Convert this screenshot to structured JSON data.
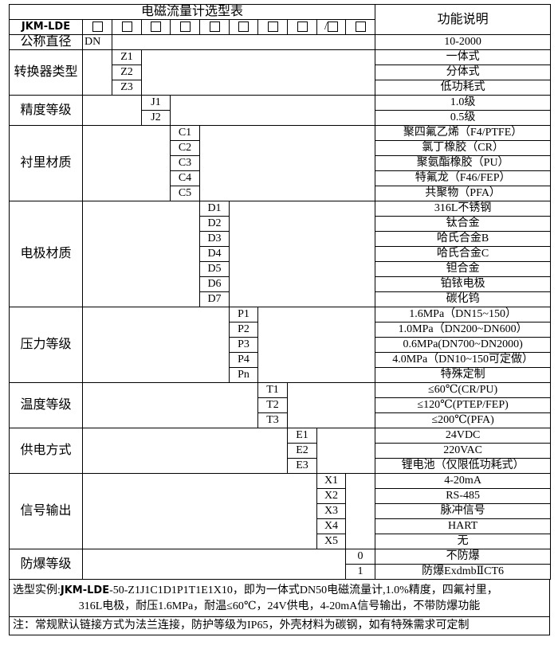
{
  "title": "电磁流量计选型表",
  "function_header": "功能说明",
  "model_prefix": "JKM-LDE",
  "code_boxes": [
    "□",
    "□",
    "□",
    "□",
    "□",
    "□",
    "□",
    "□",
    "/□",
    "□"
  ],
  "diameter": {
    "label": "公称直径",
    "code": "DN",
    "description": "10-2000"
  },
  "sections": [
    {
      "label": "转换器类型",
      "column": 2,
      "codes": [
        "Z1",
        "Z2",
        "Z3"
      ],
      "descriptions": [
        "一体式",
        "分体式",
        "低功耗式"
      ]
    },
    {
      "label": "精度等级",
      "column": 3,
      "codes": [
        "J1",
        "J2"
      ],
      "descriptions": [
        "1.0级",
        "0.5级"
      ]
    },
    {
      "label": "衬里材质",
      "column": 4,
      "codes": [
        "C1",
        "C2",
        "C3",
        "C4",
        "C5"
      ],
      "descriptions": [
        "聚四氟乙烯（F4/PTFE）",
        "氯丁橡胶（CR）",
        "聚氨酯橡胶（PU）",
        "特氟龙（F46/FEP）",
        "共聚物（PFA）"
      ]
    },
    {
      "label": "电极材质",
      "column": 5,
      "codes": [
        "D1",
        "D2",
        "D3",
        "D4",
        "D5",
        "D6",
        "D7"
      ],
      "descriptions": [
        "316L不锈钢",
        "钛合金",
        "哈氏合金B",
        "哈氏合金C",
        "钽合金",
        "铂铱电极",
        "碳化钨"
      ]
    },
    {
      "label": "压力等级",
      "column": 6,
      "codes": [
        "P1",
        "P2",
        "P3",
        "P4",
        "Pn"
      ],
      "descriptions": [
        "1.6MPa（DN15~150）",
        "1.0MPa（DN200~DN600）",
        "0.6MPa(DN700~DN2000)",
        "4.0MPa（DN10~150可定做）",
        "特殊定制"
      ]
    },
    {
      "label": "温度等级",
      "column": 7,
      "codes": [
        "T1",
        "T2",
        "T3"
      ],
      "descriptions": [
        "≤60℃(CR/PU)",
        "≤120℃(PTEP/FEP)",
        "≤200℃(PFA)"
      ]
    },
    {
      "label": "供电方式",
      "column": 8,
      "codes": [
        "E1",
        "E2",
        "E3"
      ],
      "descriptions": [
        "24VDC",
        "220VAC",
        "锂电池（仅限低功耗式）"
      ]
    },
    {
      "label": "信号输出",
      "column": 9,
      "codes": [
        "X1",
        "X2",
        "X3",
        "X4",
        "X5"
      ],
      "descriptions": [
        "4-20mA",
        "RS-485",
        "脉冲信号",
        "HART",
        "无"
      ]
    },
    {
      "label": "防爆等级",
      "column": 10,
      "codes": [
        "0",
        "1"
      ],
      "descriptions": [
        "不防爆",
        "防爆ExdmbⅡCT6"
      ]
    }
  ],
  "example": {
    "prefix": "选型实例:",
    "model": "JKM-LDE",
    "line1_rest": "-50-Z1J1C1D1P1T1E1X10，即为一体式DN50电磁流量计,1.0%精度，四氟衬里，",
    "line2": "316L电极，耐压1.6MPa，耐温≤60℃，24V供电，4-20mA信号输出，不带防爆功能"
  },
  "note": "注：常规默认链接方式为法兰连接，防护等级为IP65，外壳材料为碳钢，如有特殊需求可定制"
}
